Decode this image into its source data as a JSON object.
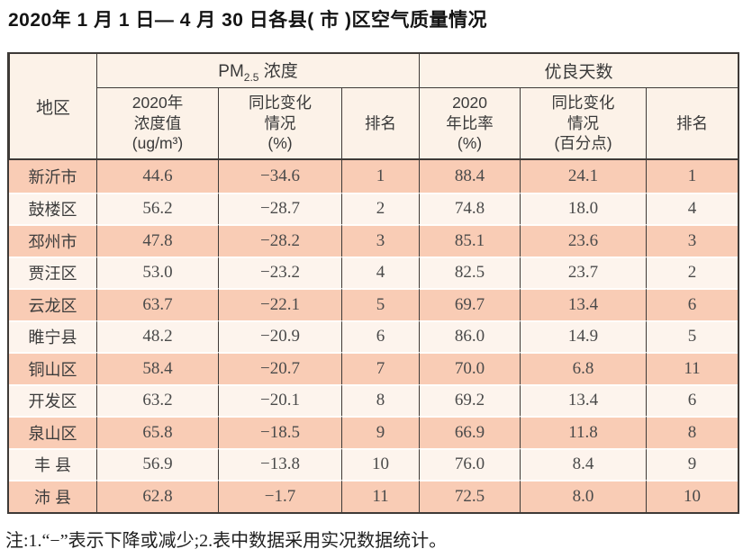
{
  "page": {
    "title": "2020年 1 月 1 日— 4 月 30 日各县( 市 )区空气质量情况",
    "note": "注:1.“−”表示下降或减少;2.表中数据采用实况数据统计。"
  },
  "table": {
    "corner_header": "地区",
    "groups": {
      "pm25": {
        "prefix": "PM",
        "sub": "2.5",
        "suffix": " 浓度"
      },
      "good_days": "优良天数"
    },
    "sub_headers": [
      "2020年\n浓度值\n(ug/m³)",
      "同比变化\n情况\n(%)",
      "排名",
      "2020\n年比率\n(%)",
      "同比变化\n情况\n(百分点)",
      "排名"
    ],
    "column_names": [
      "region",
      "pm25-2020-value",
      "pm25-yoy-change",
      "pm25-rank",
      "good-days-ratio",
      "good-days-yoy-change",
      "good-days-rank"
    ],
    "rows": [
      [
        "新沂市",
        "44.6",
        "−34.6",
        "1",
        "88.4",
        "24.1",
        "1"
      ],
      [
        "鼓楼区",
        "56.2",
        "−28.7",
        "2",
        "74.8",
        "18.0",
        "4"
      ],
      [
        "邳州市",
        "47.8",
        "−28.2",
        "3",
        "85.1",
        "23.6",
        "3"
      ],
      [
        "贾汪区",
        "53.0",
        "−23.2",
        "4",
        "82.5",
        "23.7",
        "2"
      ],
      [
        "云龙区",
        "63.7",
        "−22.1",
        "5",
        "69.7",
        "13.4",
        "6"
      ],
      [
        "睢宁县",
        "48.2",
        "−20.9",
        "6",
        "86.0",
        "14.9",
        "5"
      ],
      [
        "铜山区",
        "58.4",
        "−20.7",
        "7",
        "70.0",
        "6.8",
        "11"
      ],
      [
        "开发区",
        "63.2",
        "−20.1",
        "8",
        "69.2",
        "13.4",
        "6"
      ],
      [
        "泉山区",
        "65.8",
        "−18.5",
        "9",
        "66.9",
        "11.8",
        "8"
      ],
      [
        "丰 县",
        "56.9",
        "−13.8",
        "10",
        "76.0",
        "8.4",
        "9"
      ],
      [
        "沛 县",
        "62.8",
        "−1.7",
        "11",
        "72.5",
        "8.0",
        "10"
      ]
    ]
  },
  "colors": {
    "border": "#3e3a37",
    "odd_row": "#f9ccb5",
    "even_row": "#fdf4ed",
    "header_bg": "#fcf2e8",
    "row_separator": "#fffdfb",
    "title_text": "#141414",
    "header_text": "#3a3a3a",
    "data_text": "#4a4a4a",
    "note_text": "#1f1f1f"
  }
}
